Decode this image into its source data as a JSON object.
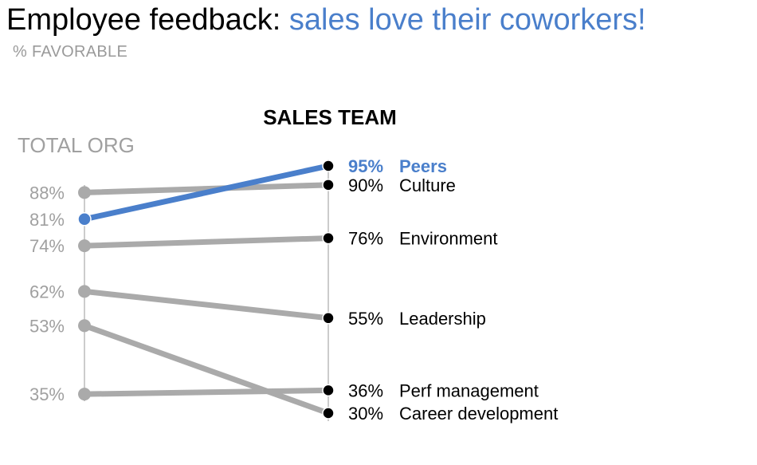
{
  "title_main": "Employee feedback: ",
  "title_highlight": "sales love their coworkers!",
  "subtitle": "% FAVORABLE",
  "chart_data": {
    "type": "line",
    "left_label": "TOTAL ORG",
    "right_label": "SALES TEAM",
    "ylim": [
      30,
      95
    ],
    "highlight_series": "Peers",
    "colors": {
      "highlight": "#4a7fcb",
      "muted": "#aaaaaa",
      "axis": "#bbbbbb",
      "point_right": "#000000"
    },
    "series": [
      {
        "name": "Peers",
        "total_org": 81,
        "sales_team": 95,
        "left_text": "81%",
        "right_text": "95%"
      },
      {
        "name": "Culture",
        "total_org": 88,
        "sales_team": 90,
        "left_text": "88%",
        "right_text": "90%"
      },
      {
        "name": "Environment",
        "total_org": 74,
        "sales_team": 76,
        "left_text": "74%",
        "right_text": "76%"
      },
      {
        "name": "Leadership",
        "total_org": 62,
        "sales_team": 55,
        "left_text": "62%",
        "right_text": "55%"
      },
      {
        "name": "Perf management",
        "total_org": 35,
        "sales_team": 36,
        "left_text": "35%",
        "right_text": "36%"
      },
      {
        "name": "Career development",
        "total_org": 53,
        "sales_team": 30,
        "left_text": "53%",
        "right_text": "30%"
      }
    ]
  }
}
